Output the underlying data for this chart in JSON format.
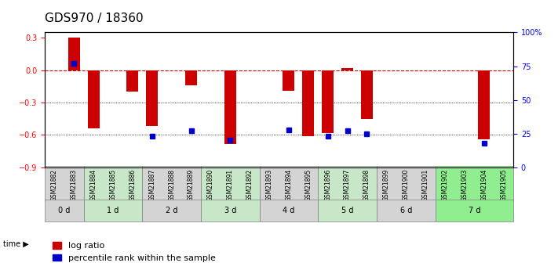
{
  "title": "GDS970 / 18360",
  "samples": [
    "GSM21882",
    "GSM21883",
    "GSM21884",
    "GSM21885",
    "GSM21886",
    "GSM21887",
    "GSM21888",
    "GSM21889",
    "GSM21890",
    "GSM21891",
    "GSM21892",
    "GSM21893",
    "GSM21894",
    "GSM21895",
    "GSM21896",
    "GSM21897",
    "GSM21898",
    "GSM21899",
    "GSM21900",
    "GSM21901",
    "GSM21902",
    "GSM21903",
    "GSM21904",
    "GSM21905"
  ],
  "log_ratio": [
    0.0,
    0.3,
    -0.54,
    0.0,
    -0.2,
    -0.52,
    0.0,
    -0.14,
    0.0,
    -0.68,
    0.0,
    0.0,
    -0.19,
    -0.61,
    -0.58,
    0.02,
    -0.45,
    0.0,
    0.0,
    0.0,
    0.0,
    0.0,
    -0.64,
    0.0
  ],
  "pct_rank": [
    null,
    77,
    null,
    null,
    null,
    23,
    null,
    27,
    null,
    20,
    null,
    null,
    28,
    null,
    23,
    27,
    25,
    null,
    null,
    null,
    null,
    null,
    18,
    null
  ],
  "time_groups": [
    {
      "label": "0 d",
      "start": 0,
      "end": 2,
      "color": "#d4d4d4"
    },
    {
      "label": "1 d",
      "start": 2,
      "end": 5,
      "color": "#c8e6c8"
    },
    {
      "label": "2 d",
      "start": 5,
      "end": 8,
      "color": "#d4d4d4"
    },
    {
      "label": "3 d",
      "start": 8,
      "end": 11,
      "color": "#c8e6c8"
    },
    {
      "label": "4 d",
      "start": 11,
      "end": 14,
      "color": "#d4d4d4"
    },
    {
      "label": "5 d",
      "start": 14,
      "end": 17,
      "color": "#c8e6c8"
    },
    {
      "label": "6 d",
      "start": 17,
      "end": 20,
      "color": "#d4d4d4"
    },
    {
      "label": "7 d",
      "start": 20,
      "end": 24,
      "color": "#90ee90"
    }
  ],
  "ylim_left": [
    -0.9,
    0.35
  ],
  "ylim_right": [
    0,
    100
  ],
  "yticks_left": [
    -0.9,
    -0.6,
    -0.3,
    0.0,
    0.3
  ],
  "yticks_right": [
    0,
    25,
    50,
    75,
    100
  ],
  "bar_color": "#cc0000",
  "dot_color": "#0000cc",
  "zero_line_color": "#cc0000",
  "grid_color": "#000000",
  "title_fontsize": 11,
  "tick_fontsize": 7,
  "legend_fontsize": 8
}
